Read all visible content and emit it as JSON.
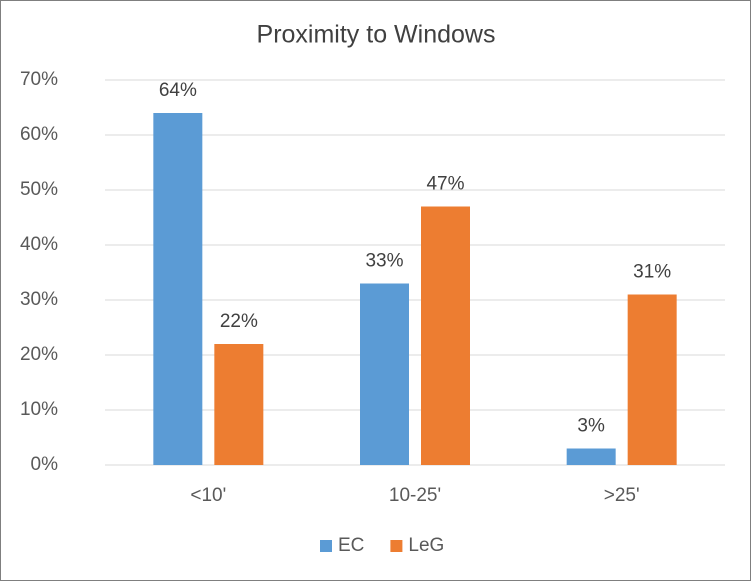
{
  "chart_data": {
    "type": "bar",
    "title": "Proximity to  Windows",
    "categories": [
      "<10'",
      "10-25'",
      ">25'"
    ],
    "series": [
      {
        "name": "EC",
        "color": "#5b9bd5",
        "values": [
          64,
          33,
          3
        ],
        "value_labels": [
          "64%",
          "33%",
          "3%"
        ]
      },
      {
        "name": "LeG",
        "color": "#ed7d31",
        "values": [
          22,
          47,
          31
        ],
        "value_labels": [
          "22%",
          "47%",
          "31%"
        ]
      }
    ],
    "ylim": [
      0,
      70
    ],
    "yticks": [
      {
        "value": 0,
        "label": "0%"
      },
      {
        "value": 10,
        "label": "10%"
      },
      {
        "value": 20,
        "label": "20%"
      },
      {
        "value": 30,
        "label": "30%"
      },
      {
        "value": 40,
        "label": "40%"
      },
      {
        "value": 50,
        "label": "50%"
      },
      {
        "value": 60,
        "label": "60%"
      },
      {
        "value": 70,
        "label": "70%"
      }
    ],
    "grid": true,
    "legend": "bottom"
  }
}
